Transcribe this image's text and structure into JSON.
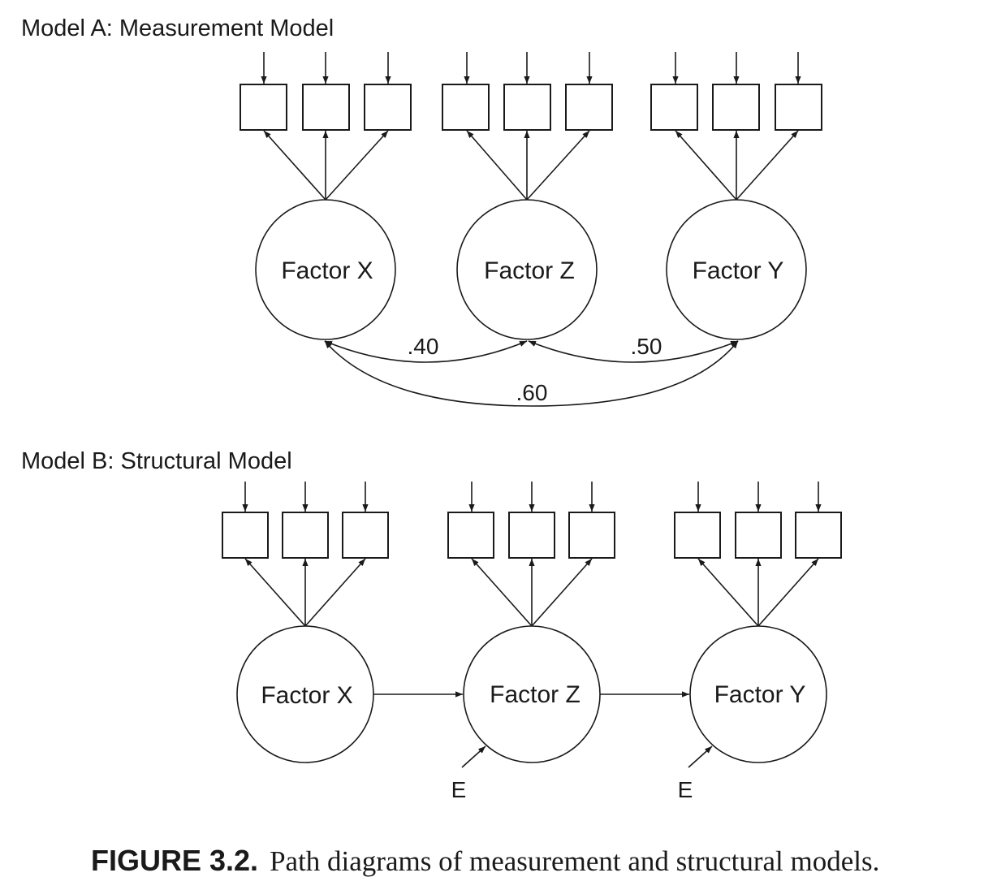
{
  "model_a": {
    "title": "Model A:  Measurement Model",
    "factors": [
      "Factor X",
      "Factor Z",
      "Factor Y"
    ],
    "correlations": {
      "x_z": ".40",
      "z_y": ".50",
      "x_y": ".60"
    }
  },
  "model_b": {
    "title": "Model B:  Structural Model",
    "factors": [
      "Factor X",
      "Factor Z",
      "Factor Y"
    ],
    "errors": [
      "E",
      "E"
    ]
  },
  "caption": {
    "label": "FIGURE 3.2.",
    "text": "Path diagrams of measurement and structural models."
  },
  "colors": {
    "ink": "#1a1a1a",
    "background": "#ffffff"
  }
}
